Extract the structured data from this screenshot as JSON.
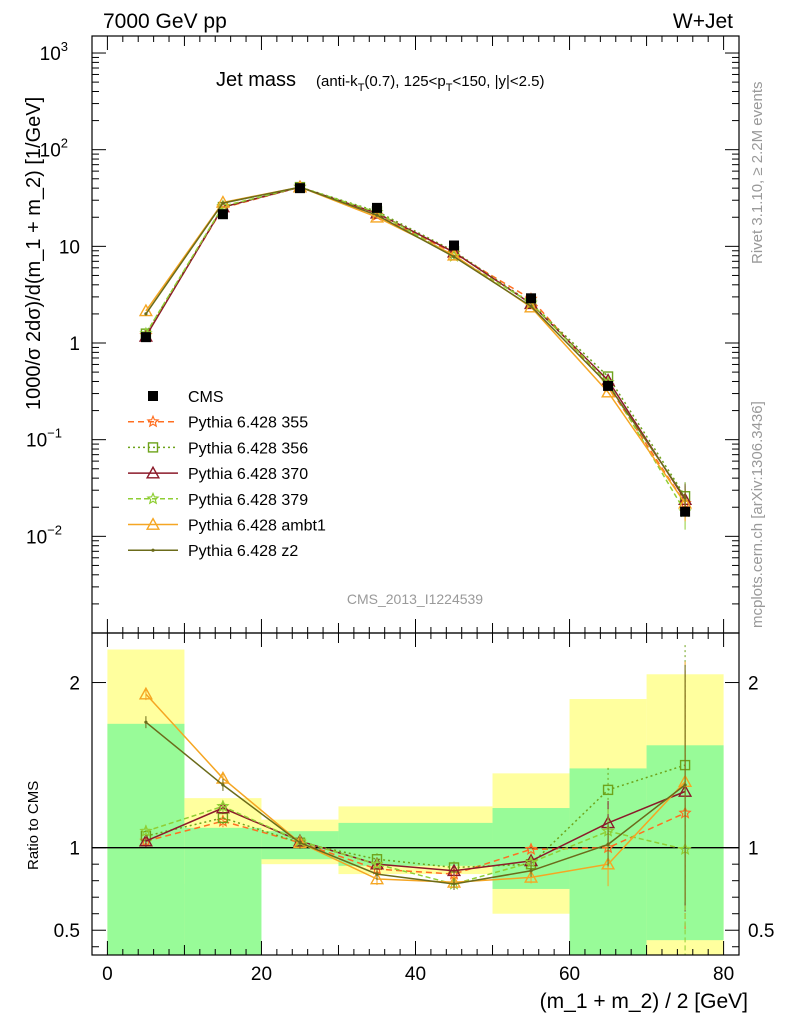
{
  "header": {
    "left": "7000 GeV pp",
    "right": "W+Jet"
  },
  "side_text": {
    "rivet": "Rivet 3.1.10, ≥ 2.2M events",
    "source": "mcplots.cern.ch [arXiv:1306.3436]"
  },
  "watermark": "CMS_2013_I1224539",
  "colors": {
    "cms": "#000000",
    "p355": "#ff6f21",
    "p356": "#6ea31b",
    "p370": "#8b1a2a",
    "p379": "#8fce34",
    "ambt1": "#f5a623",
    "z2": "#6b6b1a",
    "band_inner": "#98fb98",
    "band_outer": "#ffff9e"
  },
  "chart_data": [
    {
      "type": "line",
      "title": "Jet mass",
      "title_detail": "(anti-k_T(0.7), 125<p_T<150, |y|<2.5)",
      "ylabel": "1000/σ 2dσ)/d(m_1 + m_2) [1/GeV]",
      "yscale": "log",
      "ylim": [
        0.001,
        1500
      ],
      "xlim": [
        -2,
        82
      ],
      "y_ticks": [
        "10^{-2}",
        "10^{-1}",
        "1",
        "10",
        "10^{2}",
        "10^{3}"
      ],
      "x": [
        5,
        15,
        25,
        35,
        45,
        55,
        65,
        75
      ],
      "legend": [
        "CMS",
        "Pythia 6.428 355",
        "Pythia 6.428 356",
        "Pythia 6.428 370",
        "Pythia 6.428 379",
        "Pythia 6.428 ambt1",
        "Pythia 6.428 z2"
      ],
      "legend_position": "bottom-left",
      "series": [
        {
          "name": "CMS",
          "values": [
            1.15,
            21.5,
            40,
            25,
            10.2,
            2.9,
            0.36,
            0.018
          ]
        },
        {
          "name": "Pythia 6.428 355",
          "values": [
            1.2,
            25,
            41,
            21,
            8.5,
            2.85,
            0.36,
            0.022
          ]
        },
        {
          "name": "Pythia 6.428 356",
          "values": [
            1.25,
            25.5,
            41,
            23,
            8.9,
            2.6,
            0.45,
            0.026
          ]
        },
        {
          "name": "Pythia 6.428 370",
          "values": [
            1.17,
            25.5,
            41,
            22,
            8.7,
            2.55,
            0.41,
            0.024
          ]
        },
        {
          "name": "Pythia 6.428 379",
          "values": [
            1.25,
            26,
            41,
            22.5,
            7.9,
            2.6,
            0.39,
            0.018
          ]
        },
        {
          "name": "Pythia 6.428 ambt1",
          "values": [
            2.15,
            28.5,
            41,
            20,
            8.1,
            2.35,
            0.31,
            0.022
          ]
        },
        {
          "name": "Pythia 6.428 z2",
          "values": [
            2.0,
            28,
            41,
            21,
            7.8,
            2.4,
            0.37,
            0.025
          ]
        }
      ]
    },
    {
      "type": "line",
      "ylabel": "Ratio to CMS",
      "xlabel": "(m_1 + m_2) / 2 [GeV]",
      "ylim": [
        0.35,
        2.3
      ],
      "xlim": [
        -2,
        82
      ],
      "x_ticks": [
        0,
        20,
        40,
        60,
        80
      ],
      "y_ticks": [
        "0.5",
        "1",
        "2"
      ],
      "x": [
        5,
        15,
        25,
        35,
        45,
        55,
        65,
        75
      ],
      "bands": [
        {
          "x": [
            0,
            10
          ],
          "inner": [
            0.35,
            1.75
          ],
          "outer": [
            0.35,
            2.2
          ]
        },
        {
          "x": [
            10,
            20
          ],
          "inner": [
            0.35,
            1.12
          ],
          "outer": [
            0.78,
            1.3
          ]
        },
        {
          "x": [
            20,
            30
          ],
          "inner": [
            0.93,
            1.1
          ],
          "outer": [
            0.9,
            1.17
          ]
        },
        {
          "x": [
            30,
            40
          ],
          "inner": [
            0.89,
            1.15
          ],
          "outer": [
            0.84,
            1.25
          ]
        },
        {
          "x": [
            40,
            50
          ],
          "inner": [
            0.89,
            1.15
          ],
          "outer": [
            0.84,
            1.25
          ]
        },
        {
          "x": [
            50,
            60
          ],
          "inner": [
            0.75,
            1.24
          ],
          "outer": [
            0.6,
            1.45
          ]
        },
        {
          "x": [
            60,
            70
          ],
          "inner": [
            0.35,
            1.48
          ],
          "outer": [
            0.35,
            1.9
          ]
        },
        {
          "x": [
            70,
            80
          ],
          "inner": [
            0.44,
            1.62
          ],
          "outer": [
            0.35,
            2.05
          ]
        }
      ],
      "series": [
        {
          "name": "Pythia 6.428 355",
          "values": [
            1.04,
            1.16,
            1.03,
            0.87,
            0.84,
            0.99,
            1.0,
            1.21
          ]
        },
        {
          "name": "Pythia 6.428 356",
          "values": [
            1.07,
            1.18,
            1.03,
            0.93,
            0.88,
            0.9,
            1.35,
            1.5
          ]
        },
        {
          "name": "Pythia 6.428 370",
          "values": [
            1.04,
            1.24,
            1.04,
            0.9,
            0.86,
            0.92,
            1.15,
            1.34
          ]
        },
        {
          "name": "Pythia 6.428 379",
          "values": [
            1.1,
            1.25,
            1.04,
            0.9,
            0.78,
            0.91,
            1.1,
            0.99
          ]
        },
        {
          "name": "Pythia 6.428 ambt1",
          "values": [
            1.93,
            1.42,
            1.03,
            0.81,
            0.79,
            0.82,
            0.9,
            1.4
          ]
        },
        {
          "name": "Pythia 6.428 z2",
          "values": [
            1.76,
            1.38,
            1.03,
            0.84,
            0.78,
            0.86,
            1.02,
            1.38
          ]
        }
      ]
    }
  ]
}
